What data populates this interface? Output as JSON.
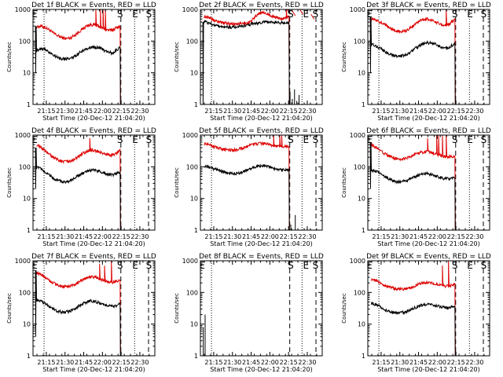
{
  "figure": {
    "ylabel": "Counts/sec",
    "xlabel": "Start Time (20-Dec-12 21:04:20)",
    "x_ticks": [
      "21:15",
      "21:30",
      "21:45",
      "22:00",
      "22:15",
      "22:30"
    ],
    "y_ticks": [
      "1",
      "10",
      "100",
      "1000"
    ],
    "colors": {
      "events": "#000000",
      "lld": "#dd0000",
      "axis": "#000000"
    }
  },
  "chart_data": [
    {
      "type": "line",
      "title": "Det 1f BLACK = Events, RED = LLD",
      "xlim": [
        "21:04:20",
        "22:42"
      ],
      "ylim": [
        1,
        1000
      ],
      "yscale": "log",
      "events_profile": [
        50,
        60,
        54,
        45,
        37,
        31,
        28,
        27,
        28,
        32,
        40,
        50,
        58,
        63,
        65,
        62,
        54,
        46,
        42,
        50,
        62
      ],
      "lld_profile": [
        280,
        300,
        270,
        230,
        180,
        150,
        130,
        120,
        125,
        150,
        190,
        240,
        300,
        330,
        320,
        290,
        250,
        225,
        220,
        260,
        300
      ],
      "events_low": [
        300,
        10
      ],
      "lld_spikes": [
        [
          21.91,
          1000
        ],
        [
          21.97,
          1000
        ],
        [
          22.01,
          1000
        ],
        [
          22.04,
          1000
        ]
      ],
      "post_events": [],
      "post_lld": [],
      "markers": [
        {
          "label": "E",
          "time": 21.094
        },
        {
          "label": "S",
          "time": 22.234
        },
        {
          "label": "E",
          "time": 22.438
        },
        {
          "label": "S",
          "time": 22.621
        }
      ],
      "dotted_lines": [
        21.22,
        22.43
      ],
      "dashed_lines": [
        22.246,
        22.616
      ]
    },
    {
      "type": "line",
      "title": "Det 2f BLACK = Events, RED = LLD",
      "xlim": [
        "21:04:20",
        "22:42"
      ],
      "ylim": [
        1,
        1000
      ],
      "yscale": "log",
      "events_profile": [
        420,
        380,
        330,
        300,
        290,
        280,
        275,
        275,
        285,
        300,
        320,
        340,
        360,
        375,
        390,
        400,
        400,
        390,
        380,
        380,
        380
      ],
      "lld_profile": [
        600,
        560,
        480,
        420,
        390,
        370,
        360,
        350,
        350,
        360,
        370,
        400,
        600,
        750,
        800,
        720,
        620,
        560,
        530,
        520,
        600
      ],
      "events_low": [
        400,
        0.1
      ],
      "lld_spikes": [
        [
          22.22,
          1000
        ]
      ],
      "post_events": [
        [
          22.27,
          2.5
        ],
        [
          22.3,
          1.5
        ],
        [
          22.33,
          3
        ],
        [
          22.36,
          1.3
        ],
        [
          22.39,
          2
        ]
      ],
      "post_lld": [
        [
          22.23,
          1000
        ],
        [
          22.3,
          900
        ],
        [
          22.4,
          1000
        ],
        [
          22.55,
          700
        ],
        [
          22.7,
          500
        ]
      ],
      "markers": [
        {
          "label": "S",
          "time": 22.279
        },
        {
          "label": "E",
          "time": 22.482
        },
        {
          "label": "S",
          "time": 22.61
        }
      ],
      "dotted_lines": [
        21.22,
        22.43
      ],
      "dashed_lines": [
        22.266,
        22.616
      ]
    },
    {
      "type": "line",
      "title": "Det 3f BLACK = Events, RED = LLD",
      "xlim": [
        "21:04:20",
        "22:42"
      ],
      "ylim": [
        1,
        1000
      ],
      "yscale": "log",
      "events_profile": [
        80,
        70,
        60,
        50,
        40,
        36,
        34,
        34,
        36,
        42,
        52,
        65,
        78,
        88,
        88,
        82,
        72,
        62,
        60,
        70,
        85
      ],
      "lld_profile": [
        500,
        480,
        420,
        360,
        290,
        240,
        210,
        200,
        210,
        240,
        300,
        380,
        460,
        500,
        480,
        430,
        370,
        330,
        320,
        380,
        480
      ],
      "events_low": [
        600,
        10
      ],
      "lld_spikes": [
        [
          22.12,
          1000
        ]
      ],
      "post_events": [],
      "post_lld": [],
      "markers": [
        {
          "label": "E",
          "time": 21.094
        },
        {
          "label": "S",
          "time": 22.234
        },
        {
          "label": "E",
          "time": 22.438
        },
        {
          "label": "S",
          "time": 22.621
        }
      ],
      "dotted_lines": [
        21.22,
        22.43
      ],
      "dashed_lines": [
        22.246,
        22.616
      ]
    },
    {
      "type": "line",
      "title": "Det 4f BLACK = Events, RED = LLD",
      "xlim": [
        "21:04:20",
        "22:42"
      ],
      "ylim": [
        1,
        1000
      ],
      "yscale": "log",
      "events_profile": [
        95,
        90,
        70,
        55,
        44,
        38,
        34,
        34,
        36,
        42,
        52,
        62,
        72,
        78,
        78,
        72,
        64,
        58,
        55,
        60,
        68
      ],
      "lld_profile": [
        500,
        420,
        320,
        250,
        200,
        170,
        150,
        145,
        150,
        170,
        210,
        260,
        310,
        340,
        330,
        300,
        260,
        240,
        230,
        260,
        320
      ],
      "events_low": [
        400,
        20
      ],
      "lld_spikes": [
        [
          21.83,
          800
        ]
      ],
      "post_events": [],
      "post_lld": [],
      "markers": [
        {
          "label": "E",
          "time": 21.094
        },
        {
          "label": "S",
          "time": 22.234
        },
        {
          "label": "E",
          "time": 22.438
        },
        {
          "label": "S",
          "time": 22.621
        }
      ],
      "dotted_lines": [
        21.22,
        22.43
      ],
      "dashed_lines": [
        22.246,
        22.616
      ]
    },
    {
      "type": "line",
      "title": "Det 5f BLACK = Events, RED = LLD",
      "xlim": [
        "21:04:20",
        "22:42"
      ],
      "ylim": [
        1,
        1000
      ],
      "yscale": "log",
      "events_profile": [
        110,
        100,
        90,
        80,
        72,
        66,
        62,
        60,
        62,
        68,
        78,
        90,
        100,
        108,
        108,
        102,
        92,
        84,
        80,
        80,
        82
      ],
      "lld_profile": [
        550,
        500,
        440,
        400,
        370,
        350,
        340,
        340,
        350,
        380,
        430,
        480,
        520,
        540,
        540,
        520,
        480,
        450,
        440,
        440,
        460
      ],
      "events_low": [],
      "lld_spikes": [
        [
          22.05,
          1000
        ],
        [
          22.13,
          1000
        ],
        [
          22.16,
          1000
        ]
      ],
      "post_events": [
        [
          22.28,
          1.5
        ],
        [
          22.34,
          3
        ]
      ],
      "post_lld": [],
      "markers": [
        {
          "label": "S",
          "time": 22.279
        },
        {
          "label": "E",
          "time": 22.482
        },
        {
          "label": "S",
          "time": 22.61
        }
      ],
      "dotted_lines": [
        21.22,
        22.43
      ],
      "dashed_lines": [
        22.266,
        22.616
      ]
    },
    {
      "type": "line",
      "title": "Det 6f BLACK = Events, RED = LLD",
      "xlim": [
        "21:04:20",
        "22:42"
      ],
      "ylim": [
        1,
        1000
      ],
      "yscale": "log",
      "events_profile": [
        80,
        72,
        62,
        52,
        44,
        38,
        34,
        34,
        36,
        40,
        46,
        52,
        58,
        60,
        58,
        54,
        48,
        44,
        42,
        42,
        44
      ],
      "lld_profile": [
        500,
        420,
        330,
        270,
        230,
        200,
        180,
        175,
        180,
        200,
        230,
        260,
        290,
        300,
        290,
        270,
        240,
        220,
        210,
        210,
        220
      ],
      "events_low": [
        600,
        20
      ],
      "lld_spikes": [
        [
          21.87,
          800
        ],
        [
          21.99,
          1000
        ],
        [
          22.02,
          1000
        ],
        [
          22.07,
          1000
        ],
        [
          22.12,
          1000
        ]
      ],
      "post_events": [],
      "post_lld": [],
      "markers": [
        {
          "label": "E",
          "time": 21.094
        },
        {
          "label": "S",
          "time": 22.234
        },
        {
          "label": "E",
          "time": 22.438
        },
        {
          "label": "S",
          "time": 22.621
        }
      ],
      "dotted_lines": [
        21.22,
        22.43
      ],
      "dashed_lines": [
        22.246,
        22.616
      ]
    },
    {
      "type": "line",
      "title": "Det 7f BLACK = Events, RED = LLD",
      "xlim": [
        "21:04:20",
        "22:42"
      ],
      "ylim": [
        1,
        1000
      ],
      "yscale": "log",
      "events_profile": [
        60,
        55,
        45,
        36,
        30,
        26,
        24,
        24,
        26,
        30,
        36,
        44,
        50,
        54,
        52,
        48,
        42,
        38,
        36,
        38,
        44
      ],
      "lld_profile": [
        420,
        380,
        300,
        240,
        200,
        170,
        155,
        150,
        155,
        175,
        210,
        250,
        290,
        310,
        300,
        270,
        240,
        220,
        210,
        220,
        250
      ],
      "events_low": [
        500,
        4
      ],
      "lld_spikes": [
        [
          21.96,
          800
        ],
        [
          22.03,
          700
        ],
        [
          22.12,
          1000
        ]
      ],
      "post_events": [],
      "post_lld": [],
      "markers": [
        {
          "label": "E",
          "time": 21.094
        },
        {
          "label": "S",
          "time": 22.234
        },
        {
          "label": "E",
          "time": 22.438
        },
        {
          "label": "S",
          "time": 22.621
        }
      ],
      "dotted_lines": [
        21.22,
        22.43
      ],
      "dashed_lines": [
        22.246,
        22.616
      ]
    },
    {
      "type": "line",
      "title": "Det 8f BLACK = Events, RED = LLD",
      "xlim": [
        "21:04:20",
        "22:42"
      ],
      "ylim": [
        1,
        1000
      ],
      "yscale": "log",
      "events_profile": [],
      "lld_profile": [],
      "events_low": [],
      "lld_spikes": [],
      "post_events": [],
      "post_lld": [],
      "vertical_bars": [
        [
          21.11,
          8,
          1
        ],
        [
          21.135,
          20,
          1
        ]
      ],
      "markers": [
        {
          "label": "E",
          "time": 21.094
        },
        {
          "label": "S",
          "time": 22.279
        },
        {
          "label": "E",
          "time": 22.482
        },
        {
          "label": "S",
          "time": 22.61
        }
      ],
      "dotted_lines": [
        21.22,
        22.43
      ],
      "dashed_lines": [
        22.266,
        22.616
      ]
    },
    {
      "type": "line",
      "title": "Det 9f BLACK = Events, RED = LLD",
      "xlim": [
        "21:04:20",
        "22:42"
      ],
      "ylim": [
        1,
        1000
      ],
      "yscale": "log",
      "events_profile": [
        46,
        42,
        36,
        30,
        26,
        24,
        23,
        23,
        24,
        27,
        31,
        36,
        40,
        42,
        42,
        40,
        37,
        35,
        34,
        35,
        38
      ],
      "lld_profile": [
        260,
        240,
        200,
        170,
        150,
        140,
        130,
        128,
        130,
        140,
        155,
        175,
        195,
        205,
        200,
        190,
        175,
        165,
        160,
        165,
        180
      ],
      "events_low": [],
      "lld_spikes": [
        [
          22.07,
          700
        ],
        [
          22.15,
          1000
        ]
      ],
      "post_events": [],
      "post_lld": [],
      "markers": [
        {
          "label": "E",
          "time": 21.094
        },
        {
          "label": "S",
          "time": 22.234
        },
        {
          "label": "E",
          "time": 22.438
        },
        {
          "label": "S",
          "time": 22.621
        }
      ],
      "dotted_lines": [
        21.22,
        22.43
      ],
      "dashed_lines": [
        22.246,
        22.616
      ]
    }
  ]
}
